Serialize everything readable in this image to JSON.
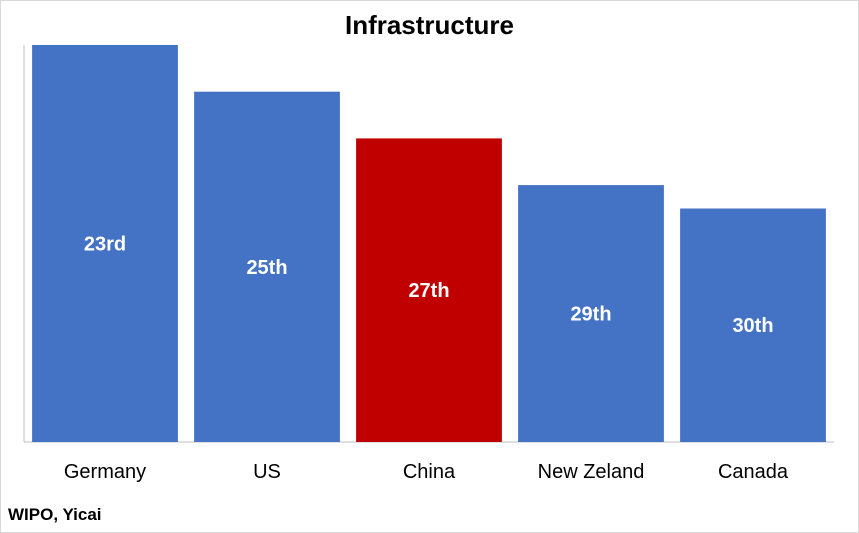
{
  "source_note": "WIPO, Yicai",
  "colors": {
    "default_bar": "#4472C4",
    "highlight_bar": "#C00000",
    "axis": "#BFBFBF"
  },
  "chart_data": {
    "type": "bar",
    "title": "Infrastructure",
    "xlabel": "",
    "ylabel": "",
    "categories": [
      "Germany",
      "US",
      "China",
      "New Zeland",
      "Canada"
    ],
    "values": [
      23,
      25,
      27,
      29,
      30
    ],
    "data_labels": [
      "23rd",
      "25th",
      "27th",
      "29th",
      "30th"
    ],
    "highlight": "China",
    "axis_reversed": true,
    "ylim": [
      40,
      23
    ],
    "grid": false,
    "legend": "none"
  }
}
